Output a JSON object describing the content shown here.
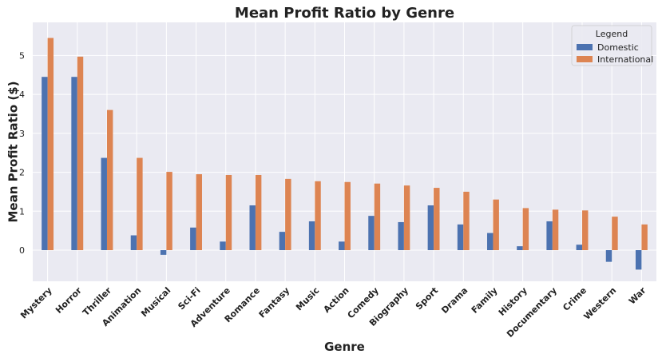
{
  "chart_data": {
    "type": "bar",
    "title": "Mean Profit Ratio by Genre",
    "xlabel": "Genre",
    "ylabel": "Mean Profit Ratio ($)",
    "categories": [
      "Mystery",
      "Horror",
      "Thriller",
      "Animation",
      "Musical",
      "Sci-Fi",
      "Adventure",
      "Romance",
      "Fantasy",
      "Music",
      "Action",
      "Comedy",
      "Biography",
      "Sport",
      "Drama",
      "Family",
      "History",
      "Documentary",
      "Crime",
      "Western",
      "War"
    ],
    "series": [
      {
        "name": "Domestic",
        "color": "#4c72b0",
        "values": [
          4.45,
          4.45,
          2.37,
          0.38,
          -0.12,
          0.58,
          0.22,
          1.15,
          0.47,
          0.74,
          0.22,
          0.88,
          0.72,
          1.15,
          0.66,
          0.44,
          0.1,
          0.74,
          0.14,
          -0.3,
          -0.5
        ]
      },
      {
        "name": "International",
        "color": "#dd8452",
        "values": [
          5.45,
          4.97,
          3.6,
          2.37,
          2.01,
          1.95,
          1.93,
          1.93,
          1.83,
          1.77,
          1.75,
          1.71,
          1.66,
          1.6,
          1.5,
          1.3,
          1.08,
          1.04,
          1.02,
          0.86,
          0.66
        ]
      }
    ],
    "yticks": [
      "0",
      "1",
      "2",
      "3",
      "4",
      "5"
    ],
    "ylim": [
      -0.8,
      5.85
    ],
    "grid": true,
    "legend": {
      "title": "Legend",
      "position": "top-right"
    },
    "background": "#eaeaf2"
  }
}
